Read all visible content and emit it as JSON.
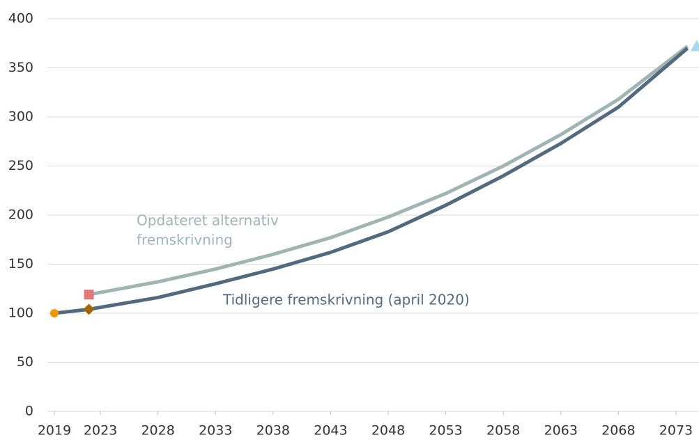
{
  "chart_data": {
    "type": "line",
    "xlim": [
      2019,
      2075
    ],
    "xticks": [
      2019,
      2023,
      2028,
      2033,
      2038,
      2043,
      2048,
      2053,
      2058,
      2063,
      2068,
      2073
    ],
    "ylim": [
      0,
      400
    ],
    "yticks": [
      0,
      50,
      100,
      150,
      200,
      250,
      300,
      350,
      400
    ],
    "grid": true,
    "series": [
      {
        "name": "Tidligere fremskrivning (april 2020)",
        "color": "#52697e",
        "x": [
          2019,
          2022,
          2028,
          2033,
          2038,
          2043,
          2048,
          2053,
          2058,
          2063,
          2068,
          2074
        ],
        "values": [
          100,
          104,
          116,
          130,
          145,
          162,
          183,
          210,
          240,
          273,
          310,
          370
        ]
      },
      {
        "name": "Opdateret alternativ fremskrivning",
        "color": "#a0b5b3",
        "x": [
          2022,
          2028,
          2033,
          2038,
          2043,
          2048,
          2053,
          2058,
          2063,
          2068,
          2074
        ],
        "values": [
          119,
          132,
          145,
          160,
          177,
          198,
          222,
          250,
          282,
          318,
          372
        ]
      }
    ],
    "annotations": [
      "Opdateret alternativ",
      "fremskrivning",
      "Tidligere fremskrivning (april 2020)"
    ],
    "points": [
      {
        "x": 2019,
        "y": 100,
        "shape": "circle",
        "color": "#f0960a"
      },
      {
        "x": 2022,
        "y": 104,
        "shape": "diamond",
        "color": "#a0660a"
      },
      {
        "x": 2022,
        "y": 119,
        "shape": "square",
        "color": "#e07a7a"
      },
      {
        "x": 2074.8,
        "y": 372,
        "shape": "triangle",
        "color": "#a8d8f0"
      }
    ]
  }
}
